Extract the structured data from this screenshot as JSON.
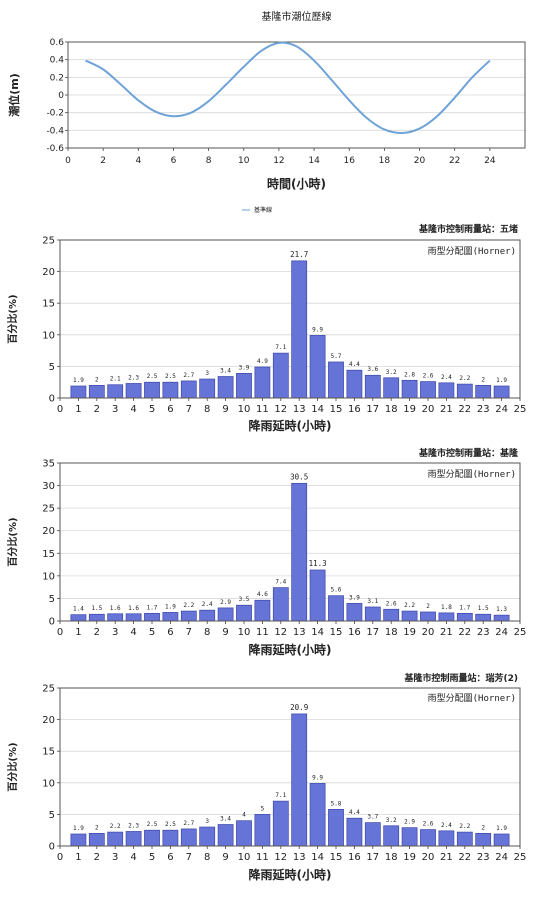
{
  "chart_data": [
    {
      "type": "line",
      "title": "基隆市潮位歷線",
      "xlabel": "時間(小時)",
      "ylabel": "潮位(m)",
      "xlim": [
        0,
        26
      ],
      "ylim": [
        -0.6,
        0.6
      ],
      "xticks": [
        0,
        2,
        4,
        6,
        8,
        10,
        12,
        14,
        16,
        18,
        20,
        22,
        24
      ],
      "yticks": [
        0.6,
        0.4,
        0.2,
        0,
        -0.2,
        -0.4,
        -0.6
      ],
      "ytick_labels": [
        "0.6",
        "0.4",
        "0.2",
        "0",
        "-0.2",
        "-0.4",
        "-0.6"
      ],
      "legend": "基準線",
      "grid": true,
      "color": "#6fa3d8",
      "series": [
        {
          "x": [
            1,
            2,
            3,
            4,
            5,
            6,
            7,
            8,
            9,
            10,
            11,
            12,
            13,
            14,
            15,
            16,
            17,
            18,
            19,
            20,
            21,
            22,
            23,
            24
          ],
          "values": [
            0.39,
            0.29,
            0.12,
            -0.06,
            -0.19,
            -0.24,
            -0.2,
            -0.07,
            0.12,
            0.32,
            0.5,
            0.59,
            0.55,
            0.39,
            0.17,
            -0.06,
            -0.26,
            -0.39,
            -0.43,
            -0.38,
            -0.24,
            -0.03,
            0.2,
            0.39
          ]
        }
      ]
    },
    {
      "type": "bar",
      "title": "基隆市控制雨量站：五堵",
      "subtitle": "雨型分配圖(Horner)",
      "xlabel": "降雨延時(小時)",
      "ylabel": "百分比(%)",
      "ylim": [
        0,
        25
      ],
      "yticks": [
        0,
        5,
        10,
        15,
        20,
        25
      ],
      "xticks": [
        0,
        1,
        2,
        3,
        4,
        5,
        6,
        7,
        8,
        9,
        10,
        11,
        12,
        13,
        14,
        15,
        16,
        17,
        18,
        19,
        20,
        21,
        22,
        23,
        24,
        25
      ],
      "grid": true,
      "color": "#6674d8",
      "categories": [
        1,
        2,
        3,
        4,
        5,
        6,
        7,
        8,
        9,
        10,
        11,
        12,
        13,
        14,
        15,
        16,
        17,
        18,
        19,
        20,
        21,
        22,
        23,
        24
      ],
      "values": [
        1.9,
        2,
        2.1,
        2.3,
        2.5,
        2.5,
        2.7,
        3,
        3.4,
        3.9,
        4.9,
        7.1,
        21.7,
        9.9,
        5.7,
        4.4,
        3.6,
        3.2,
        2.8,
        2.6,
        2.4,
        2.2,
        2,
        1.9
      ],
      "labels": [
        "1.9",
        "2",
        "2.1",
        "2.3",
        "2.5",
        "2.5",
        "2.7",
        "3",
        "3.4",
        "3.9",
        "4.9",
        "7.1",
        "21.7",
        "9.9",
        "5.7",
        "4.4",
        "3.6",
        "3.2",
        "2.8",
        "2.6",
        "2.4",
        "2.2",
        "2",
        "1.9"
      ]
    },
    {
      "type": "bar",
      "title": "基隆市控制雨量站：基隆",
      "subtitle": "雨型分配圖(Horner)",
      "xlabel": "降雨延時(小時)",
      "ylabel": "百分比(%)",
      "ylim": [
        0,
        35
      ],
      "yticks": [
        0,
        5,
        10,
        15,
        20,
        25,
        30,
        35
      ],
      "xticks": [
        0,
        1,
        2,
        3,
        4,
        5,
        6,
        7,
        8,
        9,
        10,
        11,
        12,
        13,
        14,
        15,
        16,
        17,
        18,
        19,
        20,
        21,
        22,
        23,
        24,
        25
      ],
      "grid": true,
      "color": "#6674d8",
      "categories": [
        1,
        2,
        3,
        4,
        5,
        6,
        7,
        8,
        9,
        10,
        11,
        12,
        13,
        14,
        15,
        16,
        17,
        18,
        19,
        20,
        21,
        22,
        23,
        24
      ],
      "values": [
        1.4,
        1.5,
        1.6,
        1.6,
        1.7,
        1.9,
        2.2,
        2.4,
        2.9,
        3.5,
        4.6,
        7.4,
        30.5,
        11.3,
        5.6,
        3.9,
        3.1,
        2.6,
        2.2,
        2,
        1.8,
        1.7,
        1.5,
        1.3
      ],
      "labels": [
        "1.4",
        "1.5",
        "1.6",
        "1.6",
        "1.7",
        "1.9",
        "2.2",
        "2.4",
        "2.9",
        "3.5",
        "4.6",
        "7.4",
        "30.5",
        "11.3",
        "5.6",
        "3.9",
        "3.1",
        "2.6",
        "2.2",
        "2",
        "1.8",
        "1.7",
        "1.5",
        "1.3"
      ]
    },
    {
      "type": "bar",
      "title": "基隆市控制雨量站：瑞芳(2)",
      "subtitle": "雨型分配圖(Horner)",
      "xlabel": "降雨延時(小時)",
      "ylabel": "百分比(%)",
      "ylim": [
        0,
        25
      ],
      "yticks": [
        0,
        5,
        10,
        15,
        20,
        25
      ],
      "xticks": [
        0,
        1,
        2,
        3,
        4,
        5,
        6,
        7,
        8,
        9,
        10,
        11,
        12,
        13,
        14,
        15,
        16,
        17,
        18,
        19,
        20,
        21,
        22,
        23,
        24,
        25
      ],
      "grid": true,
      "color": "#6674d8",
      "categories": [
        1,
        2,
        3,
        4,
        5,
        6,
        7,
        8,
        9,
        10,
        11,
        12,
        13,
        14,
        15,
        16,
        17,
        18,
        19,
        20,
        21,
        22,
        23,
        24
      ],
      "values": [
        1.9,
        2,
        2.2,
        2.3,
        2.5,
        2.5,
        2.7,
        3,
        3.4,
        4,
        5,
        7.1,
        20.9,
        9.9,
        5.8,
        4.4,
        3.7,
        3.2,
        2.9,
        2.6,
        2.4,
        2.2,
        2,
        1.9
      ],
      "labels": [
        "1.9",
        "2",
        "2.2",
        "2.3",
        "2.5",
        "2.5",
        "2.7",
        "3",
        "3.4",
        "4",
        "5",
        "7.1",
        "20.9",
        "9.9",
        "5.8",
        "4.4",
        "3.7",
        "3.2",
        "2.9",
        "2.6",
        "2.4",
        "2.2",
        "2",
        "1.9"
      ]
    }
  ]
}
